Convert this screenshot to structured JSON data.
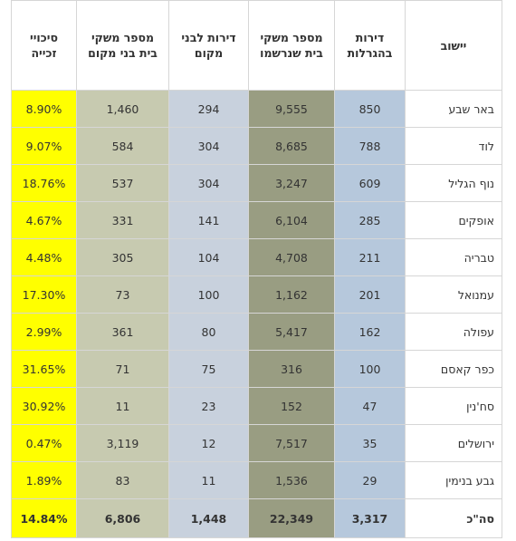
{
  "headers": {
    "settlement": "יישוב",
    "lottery_apartments": "דירות בהגרלות",
    "registered_households": "מספר משקי בית  שנרשמו",
    "local_apartments": "דירות לבני מקום",
    "local_households": "מספר משקי בית בני מקום",
    "win_chance": "סיכויי זכייה"
  },
  "rows": [
    {
      "city": "באר שבע",
      "lottery": "850",
      "registered": "9,555",
      "local_apts": "294",
      "local_hh": "1,460",
      "chance": "8.90%"
    },
    {
      "city": "לוד",
      "lottery": "788",
      "registered": "8,685",
      "local_apts": "304",
      "local_hh": "584",
      "chance": "9.07%"
    },
    {
      "city": "נוף הגליל",
      "lottery": "609",
      "registered": "3,247",
      "local_apts": "304",
      "local_hh": "537",
      "chance": "18.76%"
    },
    {
      "city": "אופקים",
      "lottery": "285",
      "registered": "6,104",
      "local_apts": "141",
      "local_hh": "331",
      "chance": "4.67%"
    },
    {
      "city": "טבריה",
      "lottery": "211",
      "registered": "4,708",
      "local_apts": "104",
      "local_hh": "305",
      "chance": "4.48%"
    },
    {
      "city": "עמנואל",
      "lottery": "201",
      "registered": "1,162",
      "local_apts": "100",
      "local_hh": "73",
      "chance": "17.30%"
    },
    {
      "city": "עפולה",
      "lottery": "162",
      "registered": "5,417",
      "local_apts": "80",
      "local_hh": "361",
      "chance": "2.99%"
    },
    {
      "city": "כפר קאסם",
      "lottery": "100",
      "registered": "316",
      "local_apts": "75",
      "local_hh": "71",
      "chance": "31.65%"
    },
    {
      "city": "סח'נין",
      "lottery": "47",
      "registered": "152",
      "local_apts": "23",
      "local_hh": "11",
      "chance": "30.92%"
    },
    {
      "city": "ירושלים",
      "lottery": "35",
      "registered": "7,517",
      "local_apts": "12",
      "local_hh": "3,119",
      "chance": "0.47%"
    },
    {
      "city": "גבע בנימין",
      "lottery": "29",
      "registered": "1,536",
      "local_apts": "11",
      "local_hh": "83",
      "chance": "1.89%"
    }
  ],
  "total": {
    "city": "סה\"כ",
    "lottery": "3,317",
    "registered": "22,349",
    "local_apts": "1,448",
    "local_hh": "6,806",
    "chance": "14.84%"
  },
  "colors": {
    "lottery_col": "#b6c8dc",
    "registered_col": "#999d82",
    "local_apts_col": "#c8d1dd",
    "local_hh_col": "#c7cab0",
    "chance_col": "#ffff00"
  }
}
